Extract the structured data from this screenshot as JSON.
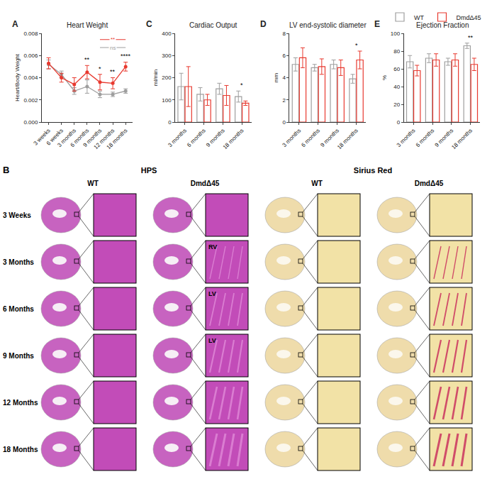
{
  "chart_data": [
    {
      "panel": "A",
      "type": "line",
      "title": "Heart Weight",
      "y_label": "Heart/Body Weight",
      "categories": [
        "3 weeks",
        "6 weeks",
        "3 months",
        "6 months",
        "9 months",
        "12 months",
        "18 months"
      ],
      "series": [
        {
          "name": "WT",
          "color": "#9e9e9e",
          "marker": "circle",
          "values": [
            0.0052,
            0.0043,
            0.0028,
            0.0032,
            0.0025,
            0.0025,
            0.0028
          ],
          "errors": [
            0.0004,
            0.0003,
            0.0003,
            0.0006,
            0.0003,
            0.0002,
            0.0002
          ]
        },
        {
          "name": "DmdΔ45",
          "color": "#e8392f",
          "marker": "circle",
          "values": [
            0.0053,
            0.004,
            0.0034,
            0.0045,
            0.0036,
            0.0035,
            0.005
          ],
          "errors": [
            0.0005,
            0.0004,
            0.0006,
            0.0006,
            0.0007,
            0.0005,
            0.0004
          ]
        }
      ],
      "ylim": [
        0,
        0.008
      ],
      "yticks": [
        {
          "value": 0,
          "label": "0.000"
        },
        {
          "value": 0.002,
          "label": "0.002"
        },
        {
          "value": 0.004,
          "label": "0.004"
        },
        {
          "value": 0.006,
          "label": "0.006"
        },
        {
          "value": 0.008,
          "label": "0.008"
        }
      ],
      "significance": [
        {
          "category": "6 months",
          "text": "**"
        },
        {
          "category": "9 months",
          "text": "*"
        },
        {
          "category": "12 months",
          "text": "**"
        },
        {
          "category": "18 months",
          "text": "****"
        }
      ],
      "brackets": [
        {
          "from": "9 months",
          "to": "18 months",
          "text": "ns",
          "color": "#9e9e9e"
        },
        {
          "from": "9 months",
          "to": "18 months",
          "text": "**",
          "color": "#e8392f"
        }
      ]
    },
    {
      "panel": "C",
      "type": "bar",
      "title": "Cardiac Output",
      "y_label": "ml/min",
      "categories": [
        "3 months",
        "6 months",
        "9 months",
        "18 months"
      ],
      "series": [
        {
          "name": "WT",
          "color": "#9e9e9e",
          "values": [
            160,
            125,
            150,
            115
          ],
          "errors": [
            60,
            30,
            25,
            25
          ]
        },
        {
          "name": "DmdΔ45",
          "color": "#e8392f",
          "values": [
            160,
            100,
            120,
            85
          ],
          "errors": [
            90,
            25,
            45,
            10
          ]
        }
      ],
      "ylim": [
        0,
        400
      ],
      "yticks": [
        0,
        100,
        200,
        300,
        400
      ],
      "significance": [
        {
          "category": "18 months",
          "text": "*"
        }
      ]
    },
    {
      "panel": "D",
      "type": "bar",
      "title": "LV end-systolic diameter",
      "y_label": "mm",
      "categories": [
        "3 months",
        "6 months",
        "9 months",
        "18 months"
      ],
      "series": [
        {
          "name": "WT",
          "color": "#9e9e9e",
          "values": [
            5.2,
            4.9,
            5.2,
            3.9
          ],
          "errors": [
            0.6,
            0.3,
            0.4,
            0.4
          ]
        },
        {
          "name": "DmdΔ45",
          "color": "#e8392f",
          "values": [
            5.8,
            5.0,
            4.9,
            5.6
          ],
          "errors": [
            0.9,
            0.7,
            0.7,
            0.8
          ]
        }
      ],
      "ylim": [
        0,
        8
      ],
      "yticks": [
        0,
        2,
        4,
        6,
        8
      ],
      "significance": [
        {
          "category": "18 months",
          "text": "*"
        }
      ]
    },
    {
      "panel": "E",
      "type": "bar",
      "title": "Ejection Fraction",
      "y_label": "%",
      "legend": "top right",
      "categories": [
        "3 months",
        "6 months",
        "9 months",
        "18 months"
      ],
      "series": [
        {
          "name": "WT",
          "color": "#9e9e9e",
          "values": [
            68,
            72,
            68,
            86
          ],
          "errors": [
            7,
            5,
            4,
            3
          ]
        },
        {
          "name": "DmdΔ45",
          "color": "#e8392f",
          "values": [
            58,
            70,
            70,
            65
          ],
          "errors": [
            6,
            7,
            7,
            7
          ]
        }
      ],
      "ylim": [
        0,
        100
      ],
      "yticks": [
        0,
        20,
        40,
        60,
        80,
        100
      ],
      "significance": [
        {
          "category": "18 months",
          "text": "**"
        }
      ]
    }
  ],
  "histology": {
    "panel": "B",
    "stains": [
      "HPS",
      "Sirius Red"
    ],
    "genotypes": [
      "WT",
      "DmdΔ45"
    ],
    "rows": [
      {
        "label": "3 Weeks"
      },
      {
        "label": "3 Months",
        "inset_label": "RV"
      },
      {
        "label": "6 Months",
        "inset_label": "LV"
      },
      {
        "label": "9 Months",
        "inset_label": "LV"
      },
      {
        "label": "12 Months"
      },
      {
        "label": "18 Months"
      }
    ]
  }
}
